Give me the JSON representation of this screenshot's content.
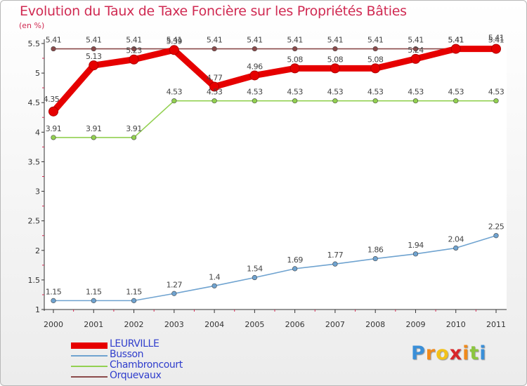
{
  "chart_data": {
    "type": "line",
    "title": "Evolution du Taux de Taxe Foncière sur les Propriétés Bâties",
    "ylabel": "(en %)",
    "xlabel": "",
    "ylim": [
      1,
      5.5
    ],
    "yticks": [
      "1",
      "1.5",
      "2",
      "2.5",
      "3",
      "3.5",
      "4",
      "4.5",
      "5",
      "5.5"
    ],
    "x": [
      "2000",
      "2001",
      "2002",
      "2003",
      "2004",
      "2005",
      "2006",
      "2007",
      "2008",
      "2009",
      "2010",
      "2011"
    ],
    "series": [
      {
        "name": "LEURVILLE",
        "color": "#e60000",
        "values": [
          4.35,
          5.13,
          5.23,
          5.39,
          4.77,
          4.96,
          5.08,
          5.08,
          5.08,
          5.24,
          5.41,
          5.41
        ],
        "labels": [
          "4.35",
          "5.13",
          "5.23",
          "5.39",
          "4.77",
          "4.96",
          "5.08",
          "5.08",
          "5.08",
          "5.24",
          "5.41",
          "5.41"
        ]
      },
      {
        "name": "Busson",
        "color": "#6fa3d0",
        "values": [
          1.15,
          1.15,
          1.15,
          1.27,
          1.4,
          1.54,
          1.69,
          1.77,
          1.86,
          1.94,
          2.04,
          2.25
        ],
        "labels": [
          "1.15",
          "1.15",
          "1.15",
          "1.27",
          "1.4",
          "1.54",
          "1.69",
          "1.77",
          "1.86",
          "1.94",
          "2.04",
          "2.25"
        ]
      },
      {
        "name": "Chambroncourt",
        "color": "#92d050",
        "values": [
          3.91,
          3.91,
          3.91,
          4.53,
          4.53,
          4.53,
          4.53,
          4.53,
          4.53,
          4.53,
          4.53,
          4.53
        ],
        "labels": [
          "3.91",
          "3.91",
          "3.91",
          "4.53",
          "4.53",
          "4.53",
          "4.53",
          "4.53",
          "4.53",
          "4.53",
          "4.53",
          "4.53"
        ]
      },
      {
        "name": "Orquevaux",
        "color": "#8b4a4a",
        "values": [
          5.41,
          5.41,
          5.41,
          5.41,
          5.41,
          5.41,
          5.41,
          5.41,
          5.41,
          5.41,
          5.41,
          5.41
        ],
        "labels": [
          "5.41",
          "5.41",
          "5.41",
          "5.41",
          "5.41",
          "5.41",
          "5.41",
          "5.41",
          "5.41",
          "5.41",
          "5.41",
          "5.41"
        ]
      }
    ]
  },
  "brand": {
    "letters": [
      "P",
      "r",
      "o",
      "x",
      "i",
      "t",
      "i"
    ],
    "colors": [
      "#3a8fd8",
      "#f08a1c",
      "#f2c21a",
      "#d8262a",
      "#f08a1c",
      "#8cc63f",
      "#3a8fd8"
    ]
  }
}
